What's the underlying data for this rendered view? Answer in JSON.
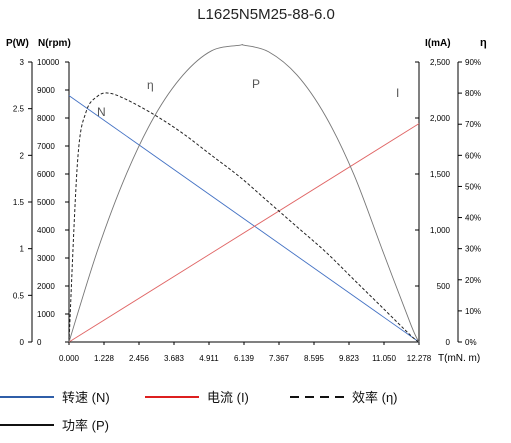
{
  "chart_data": {
    "type": "line",
    "title": "L1625N5M25-88-6.0",
    "xlabel": "T(mN. m)",
    "x_ticks": [
      "0.000",
      "1.228",
      "2.456",
      "3.683",
      "4.911",
      "6.139",
      "7.367",
      "8.595",
      "9.823",
      "11.050",
      "12.278"
    ],
    "xlim": [
      0,
      12.278
    ],
    "axes": {
      "power": {
        "label": "P(W)",
        "ticks": [
          "3",
          "2.5",
          "2",
          "1.5",
          "1",
          "0.5",
          "0"
        ],
        "range": [
          0,
          3
        ]
      },
      "speed": {
        "label": "N(rpm)",
        "ticks": [
          "10000",
          "9000",
          "8000",
          "7000",
          "6000",
          "5000",
          "4000",
          "3000",
          "2000",
          "1000",
          "0"
        ],
        "range": [
          0,
          10000
        ]
      },
      "current": {
        "label": "I(mA)",
        "ticks": [
          "2,500",
          "2,000",
          "1,500",
          "1,000",
          "500",
          "0"
        ],
        "range": [
          0,
          2500
        ]
      },
      "efficiency": {
        "label": "η",
        "ticks": [
          "90%",
          "80%",
          "70%",
          "60%",
          "50%",
          "40%",
          "30%",
          "20%",
          "10%",
          "0%"
        ],
        "range": [
          0,
          90
        ]
      }
    },
    "series": [
      {
        "key": "N",
        "name": "转速 (N)",
        "curve_label": "N",
        "color": "#4472c4",
        "style": "solid",
        "axis": "speed",
        "x": [
          0,
          12.278
        ],
        "y": [
          8800,
          0
        ]
      },
      {
        "key": "I",
        "name": "电流 (I)",
        "curve_label": "I",
        "color": "#e06666",
        "style": "solid",
        "axis": "current",
        "x": [
          0,
          12.278
        ],
        "y": [
          0,
          1950
        ]
      },
      {
        "key": "eta",
        "name": "效率 (η)",
        "curve_label": "η",
        "color": "#222222",
        "style": "dashed",
        "axis": "efficiency",
        "x": [
          0,
          0.3,
          0.6,
          1.0,
          1.4,
          2.0,
          3.0,
          4.0,
          5.0,
          6.0,
          7.0,
          8.0,
          9.0,
          10.0,
          11.0,
          12.0,
          12.278
        ],
        "y": [
          0,
          58,
          74,
          79,
          80,
          78,
          73,
          67,
          60,
          53,
          45,
          37,
          29,
          20,
          11,
          2,
          0
        ]
      },
      {
        "key": "P",
        "name": "功率 (P)",
        "curve_label": "P",
        "color": "#777777",
        "style": "solid",
        "axis": "power",
        "x": [
          0,
          1,
          2,
          3,
          4,
          5,
          6,
          6.139,
          7,
          8,
          9,
          10,
          11,
          12,
          12.278
        ],
        "y": [
          0,
          0.98,
          1.79,
          2.42,
          2.86,
          3.12,
          3.18,
          3.18,
          3.11,
          2.86,
          2.42,
          1.79,
          0.98,
          0.18,
          0
        ]
      }
    ],
    "legend": {
      "placement": "bottom"
    }
  }
}
